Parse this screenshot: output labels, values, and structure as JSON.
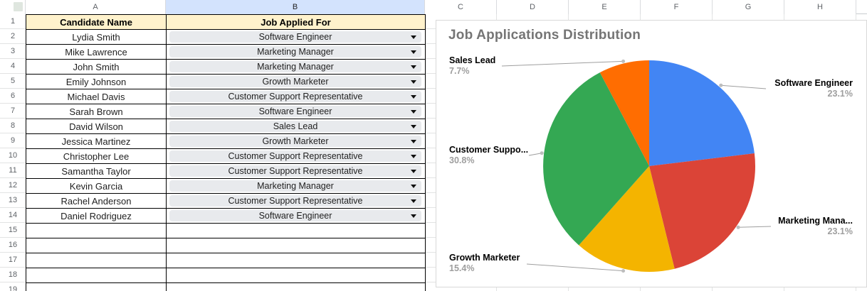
{
  "app": {
    "type": "spreadsheet-grid"
  },
  "colors": {
    "header_fill": "#fff2cc",
    "selected_column_header_fill": "#d3e3fd",
    "chip_fill": "#e8eaed",
    "grid_line": "#e2e3e3",
    "table_border": "#000000",
    "chart_border": "#d9d9d9",
    "chart_title_color": "#757575",
    "pct_label_color": "#9e9e9e"
  },
  "column_headers": [
    "A",
    "B",
    "C",
    "D",
    "E",
    "F",
    "G",
    "H"
  ],
  "highlighted_column": "B",
  "row_numbers": [
    "1",
    "2",
    "3",
    "4",
    "5",
    "6",
    "7",
    "8",
    "9",
    "10",
    "11",
    "12",
    "13",
    "14",
    "15",
    "16",
    "17",
    "18",
    "19"
  ],
  "table": {
    "headers": {
      "a": "Candidate Name",
      "b": "Job Applied For"
    },
    "rows": [
      {
        "name": "Lydia Smith",
        "job": "Software Engineer"
      },
      {
        "name": "Mike Lawrence",
        "job": "Marketing Manager"
      },
      {
        "name": "John Smith",
        "job": "Marketing Manager"
      },
      {
        "name": "Emily Johnson",
        "job": "Growth Marketer"
      },
      {
        "name": "Michael Davis",
        "job": "Customer Support Representative"
      },
      {
        "name": "Sarah Brown",
        "job": "Software Engineer"
      },
      {
        "name": "David Wilson",
        "job": "Sales Lead"
      },
      {
        "name": "Jessica Martinez",
        "job": "Growth Marketer"
      },
      {
        "name": "Christopher Lee",
        "job": "Customer Support Representative"
      },
      {
        "name": "Samantha Taylor",
        "job": "Customer Support Representative"
      },
      {
        "name": "Kevin Garcia",
        "job": "Marketing Manager"
      },
      {
        "name": "Rachel Anderson",
        "job": "Customer Support Representative"
      },
      {
        "name": "Daniel Rodriguez",
        "job": "Software Engineer"
      }
    ],
    "empty_row_count": 5
  },
  "chart_data": {
    "type": "pie",
    "title": "Job Applications Distribution",
    "direction": "clockwise",
    "start_angle_deg": 0,
    "legend": "callout-labels",
    "slices": [
      {
        "name": "Software Engineer",
        "display": "Software Engineer",
        "count": 3,
        "pct": 23.1,
        "pct_label": "23.1%",
        "color": "#4285F4"
      },
      {
        "name": "Marketing Manager",
        "display": "Marketing Mana...",
        "count": 3,
        "pct": 23.1,
        "pct_label": "23.1%",
        "color": "#DB4437"
      },
      {
        "name": "Growth Marketer",
        "display": "Growth Marketer",
        "count": 2,
        "pct": 15.4,
        "pct_label": "15.4%",
        "color": "#F4B400"
      },
      {
        "name": "Customer Support Representative",
        "display": "Customer Suppo...",
        "count": 4,
        "pct": 30.8,
        "pct_label": "30.8%",
        "color": "#34A853"
      },
      {
        "name": "Sales Lead",
        "display": "Sales Lead",
        "count": 1,
        "pct": 7.7,
        "pct_label": "7.7%",
        "color": "#FF6D01"
      }
    ]
  }
}
